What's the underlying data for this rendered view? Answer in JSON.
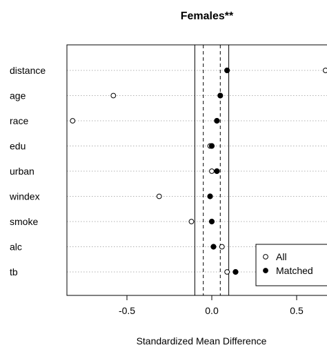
{
  "chart_data": {
    "type": "scatter",
    "title": "Females**",
    "xlabel": "Standardized Mean Difference",
    "ylabel": "",
    "xlim": [
      -0.88,
      0.67
    ],
    "xticks": [
      -0.5,
      0.0,
      0.5
    ],
    "xtick_labels": [
      "-0.5",
      "0.0",
      "0.5"
    ],
    "categories": [
      "distance",
      "age",
      "race",
      "edu",
      "urban",
      "windex",
      "smoke",
      "alc",
      "tb"
    ],
    "series": [
      {
        "name": "All",
        "marker": "open-circle",
        "values": [
          0.67,
          -0.58,
          -0.82,
          -0.01,
          0.0,
          -0.31,
          -0.12,
          0.06,
          0.09
        ]
      },
      {
        "name": "Matched",
        "marker": "filled-circle",
        "values": [
          0.09,
          0.05,
          0.03,
          0.0,
          0.03,
          -0.01,
          0.0,
          0.01,
          0.14
        ]
      }
    ],
    "reference_lines": {
      "solid": [
        -0.1,
        0.1
      ],
      "dashed": [
        -0.05,
        0.05
      ]
    },
    "dotted_row_guides": true,
    "legend": {
      "placement": "bottom-right",
      "entries": [
        "All",
        "Matched"
      ]
    }
  }
}
